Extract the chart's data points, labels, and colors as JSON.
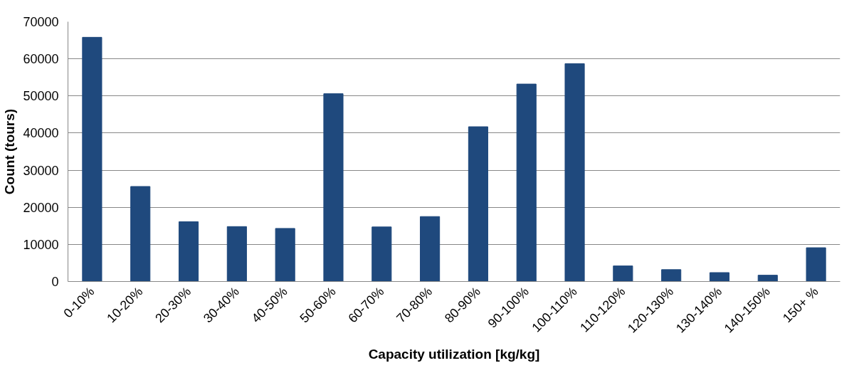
{
  "chart_data": {
    "type": "bar",
    "xlabel": "Capacity utilization [kg/kg]",
    "ylabel": "Count (tours)",
    "categories": [
      "0-10%",
      "10-20%",
      "20-30%",
      "30-40%",
      "40-50%",
      "50-60%",
      "60-70%",
      "70-80%",
      "80-90%",
      "90-100%",
      "100-110%",
      "110-120%",
      "120-130%",
      "130-140%",
      "140-150%",
      "150+ %"
    ],
    "values": [
      65800,
      25600,
      16100,
      14800,
      14300,
      50600,
      14700,
      17500,
      41700,
      53200,
      58700,
      4200,
      3200,
      2400,
      1700,
      9100
    ],
    "color": "#1f497d",
    "ylim": [
      0,
      70000
    ],
    "yticks": [
      0,
      10000,
      20000,
      30000,
      40000,
      50000,
      60000,
      70000
    ],
    "grid": "y"
  }
}
